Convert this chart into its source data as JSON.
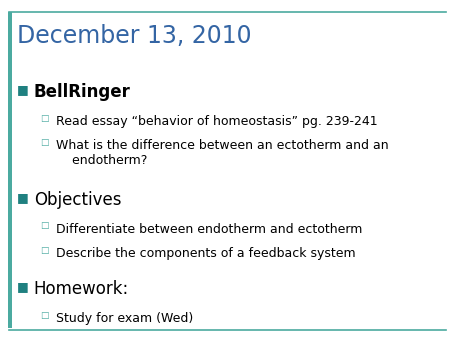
{
  "title": "December 13, 2010",
  "title_color": "#3465A4",
  "background_color": "#FFFFFF",
  "border_color": "#4BAAA0",
  "bullet_color": "#1F8080",
  "sub_bullet_color": "#4BAAA0",
  "sections": [
    {
      "header": "BellRinger",
      "header_style": "bold",
      "items": [
        "Read essay “behavior of homeostasis” pg. 239-241",
        "What is the difference between an ectotherm and an\n    endotherm?"
      ]
    },
    {
      "header": "Objectives",
      "header_style": "normal",
      "items": [
        "Differentiate between endotherm and ectotherm",
        "Describe the components of a feedback system"
      ]
    },
    {
      "header": "Homework:",
      "header_style": "normal",
      "items": [
        "Study for exam (Wed)"
      ]
    }
  ],
  "figsize": [
    4.5,
    3.38
  ],
  "dpi": 100
}
